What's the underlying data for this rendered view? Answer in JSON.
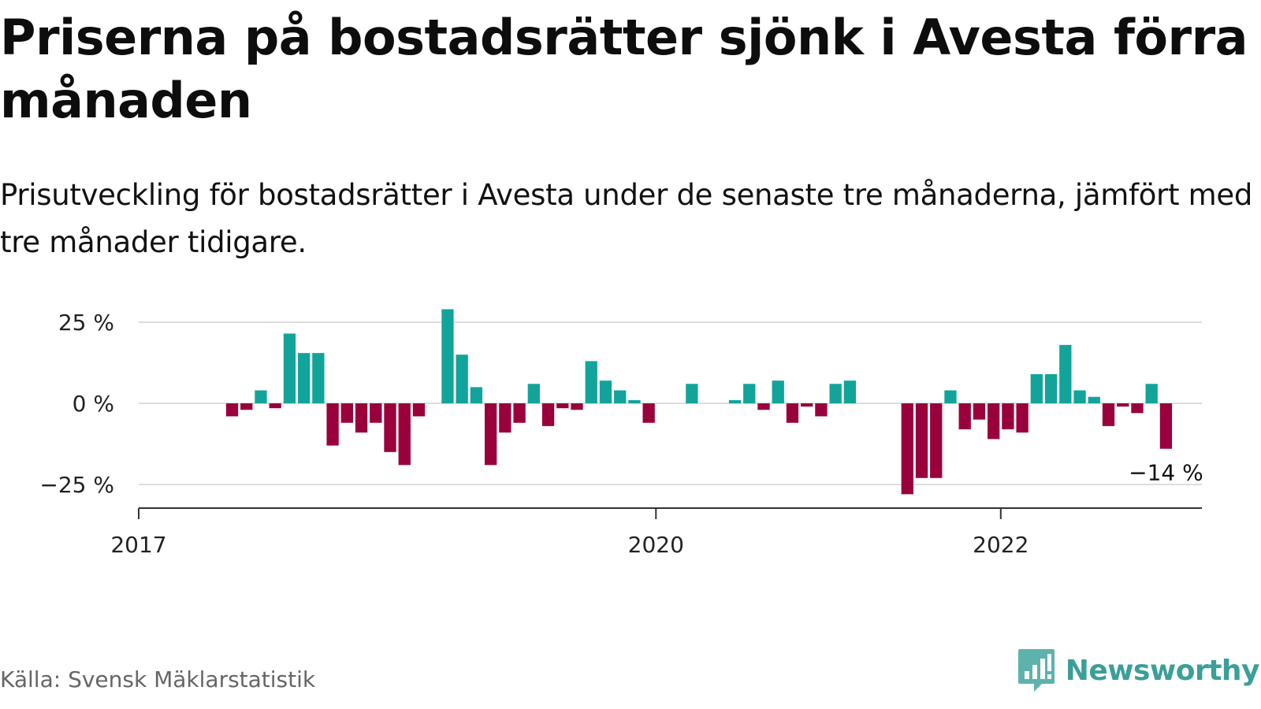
{
  "title": "Priserna på bostadsrätter sjönk i Avesta förra månaden",
  "subtitle": "Prisutveckling för bostadsrätter i Avesta under de senaste tre månaderna, jämfört med tre månader tidigare.",
  "source": "Källa: Svensk Mäklarstatistik",
  "brand": {
    "name": "Newsworthy",
    "icon": "newsworthy-logo-icon",
    "color": "#3b9f98"
  },
  "colors": {
    "positive": "#12a49a",
    "negative": "#99003c",
    "grid": "#dddddd",
    "axis": "#333333"
  },
  "last_value_label": "−14 %",
  "chart_data": {
    "type": "bar",
    "xlabel": "",
    "ylabel": "",
    "unit": "%",
    "ylim": [
      -32,
      32
    ],
    "yticks": [
      25,
      0,
      -25
    ],
    "ytick_labels": [
      "25 %",
      "0 %",
      "−25 %"
    ],
    "xtick_labels": [
      {
        "label": "2017",
        "date": "2017-01"
      },
      {
        "label": "2020",
        "date": "2020-01"
      },
      {
        "label": "2022",
        "date": "2022-01"
      }
    ],
    "x_range": [
      "2017-01",
      "2023-03"
    ],
    "grid": true,
    "series": [
      {
        "values": [
          {
            "date": "2017-07",
            "value": -4
          },
          {
            "date": "2017-08",
            "value": -2
          },
          {
            "date": "2017-09",
            "value": 4
          },
          {
            "date": "2017-10",
            "value": -1.5
          },
          {
            "date": "2017-11",
            "value": 21.5
          },
          {
            "date": "2017-12",
            "value": 15.5
          },
          {
            "date": "2018-01",
            "value": 15.5
          },
          {
            "date": "2018-02",
            "value": -13
          },
          {
            "date": "2018-03",
            "value": -6
          },
          {
            "date": "2018-04",
            "value": -9
          },
          {
            "date": "2018-05",
            "value": -6
          },
          {
            "date": "2018-06",
            "value": -15
          },
          {
            "date": "2018-07",
            "value": -19
          },
          {
            "date": "2018-08",
            "value": -4
          },
          {
            "date": "2018-10",
            "value": 29
          },
          {
            "date": "2018-11",
            "value": 15
          },
          {
            "date": "2018-12",
            "value": 5
          },
          {
            "date": "2019-01",
            "value": -19
          },
          {
            "date": "2019-02",
            "value": -9
          },
          {
            "date": "2019-03",
            "value": -6
          },
          {
            "date": "2019-04",
            "value": 6
          },
          {
            "date": "2019-05",
            "value": -7
          },
          {
            "date": "2019-06",
            "value": -1.5
          },
          {
            "date": "2019-07",
            "value": -2
          },
          {
            "date": "2019-08",
            "value": 13
          },
          {
            "date": "2019-09",
            "value": 7
          },
          {
            "date": "2019-10",
            "value": 4
          },
          {
            "date": "2019-11",
            "value": 1
          },
          {
            "date": "2019-12",
            "value": -6
          },
          {
            "date": "2020-03",
            "value": 6
          },
          {
            "date": "2020-06",
            "value": 1
          },
          {
            "date": "2020-07",
            "value": 6
          },
          {
            "date": "2020-08",
            "value": -2
          },
          {
            "date": "2020-09",
            "value": 7
          },
          {
            "date": "2020-10",
            "value": -6
          },
          {
            "date": "2020-11",
            "value": -1
          },
          {
            "date": "2020-12",
            "value": -4
          },
          {
            "date": "2021-01",
            "value": 6
          },
          {
            "date": "2021-02",
            "value": 7
          },
          {
            "date": "2021-06",
            "value": -28
          },
          {
            "date": "2021-07",
            "value": -23
          },
          {
            "date": "2021-08",
            "value": -23
          },
          {
            "date": "2021-09",
            "value": 4
          },
          {
            "date": "2021-10",
            "value": -8
          },
          {
            "date": "2021-11",
            "value": -5
          },
          {
            "date": "2021-12",
            "value": -11
          },
          {
            "date": "2022-01",
            "value": -8
          },
          {
            "date": "2022-02",
            "value": -9
          },
          {
            "date": "2022-03",
            "value": 9
          },
          {
            "date": "2022-04",
            "value": 9
          },
          {
            "date": "2022-05",
            "value": 18
          },
          {
            "date": "2022-06",
            "value": 4
          },
          {
            "date": "2022-07",
            "value": 2
          },
          {
            "date": "2022-08",
            "value": -7
          },
          {
            "date": "2022-09",
            "value": -1
          },
          {
            "date": "2022-10",
            "value": -3
          },
          {
            "date": "2022-11",
            "value": 6
          },
          {
            "date": "2022-12",
            "value": -14
          }
        ]
      }
    ]
  }
}
